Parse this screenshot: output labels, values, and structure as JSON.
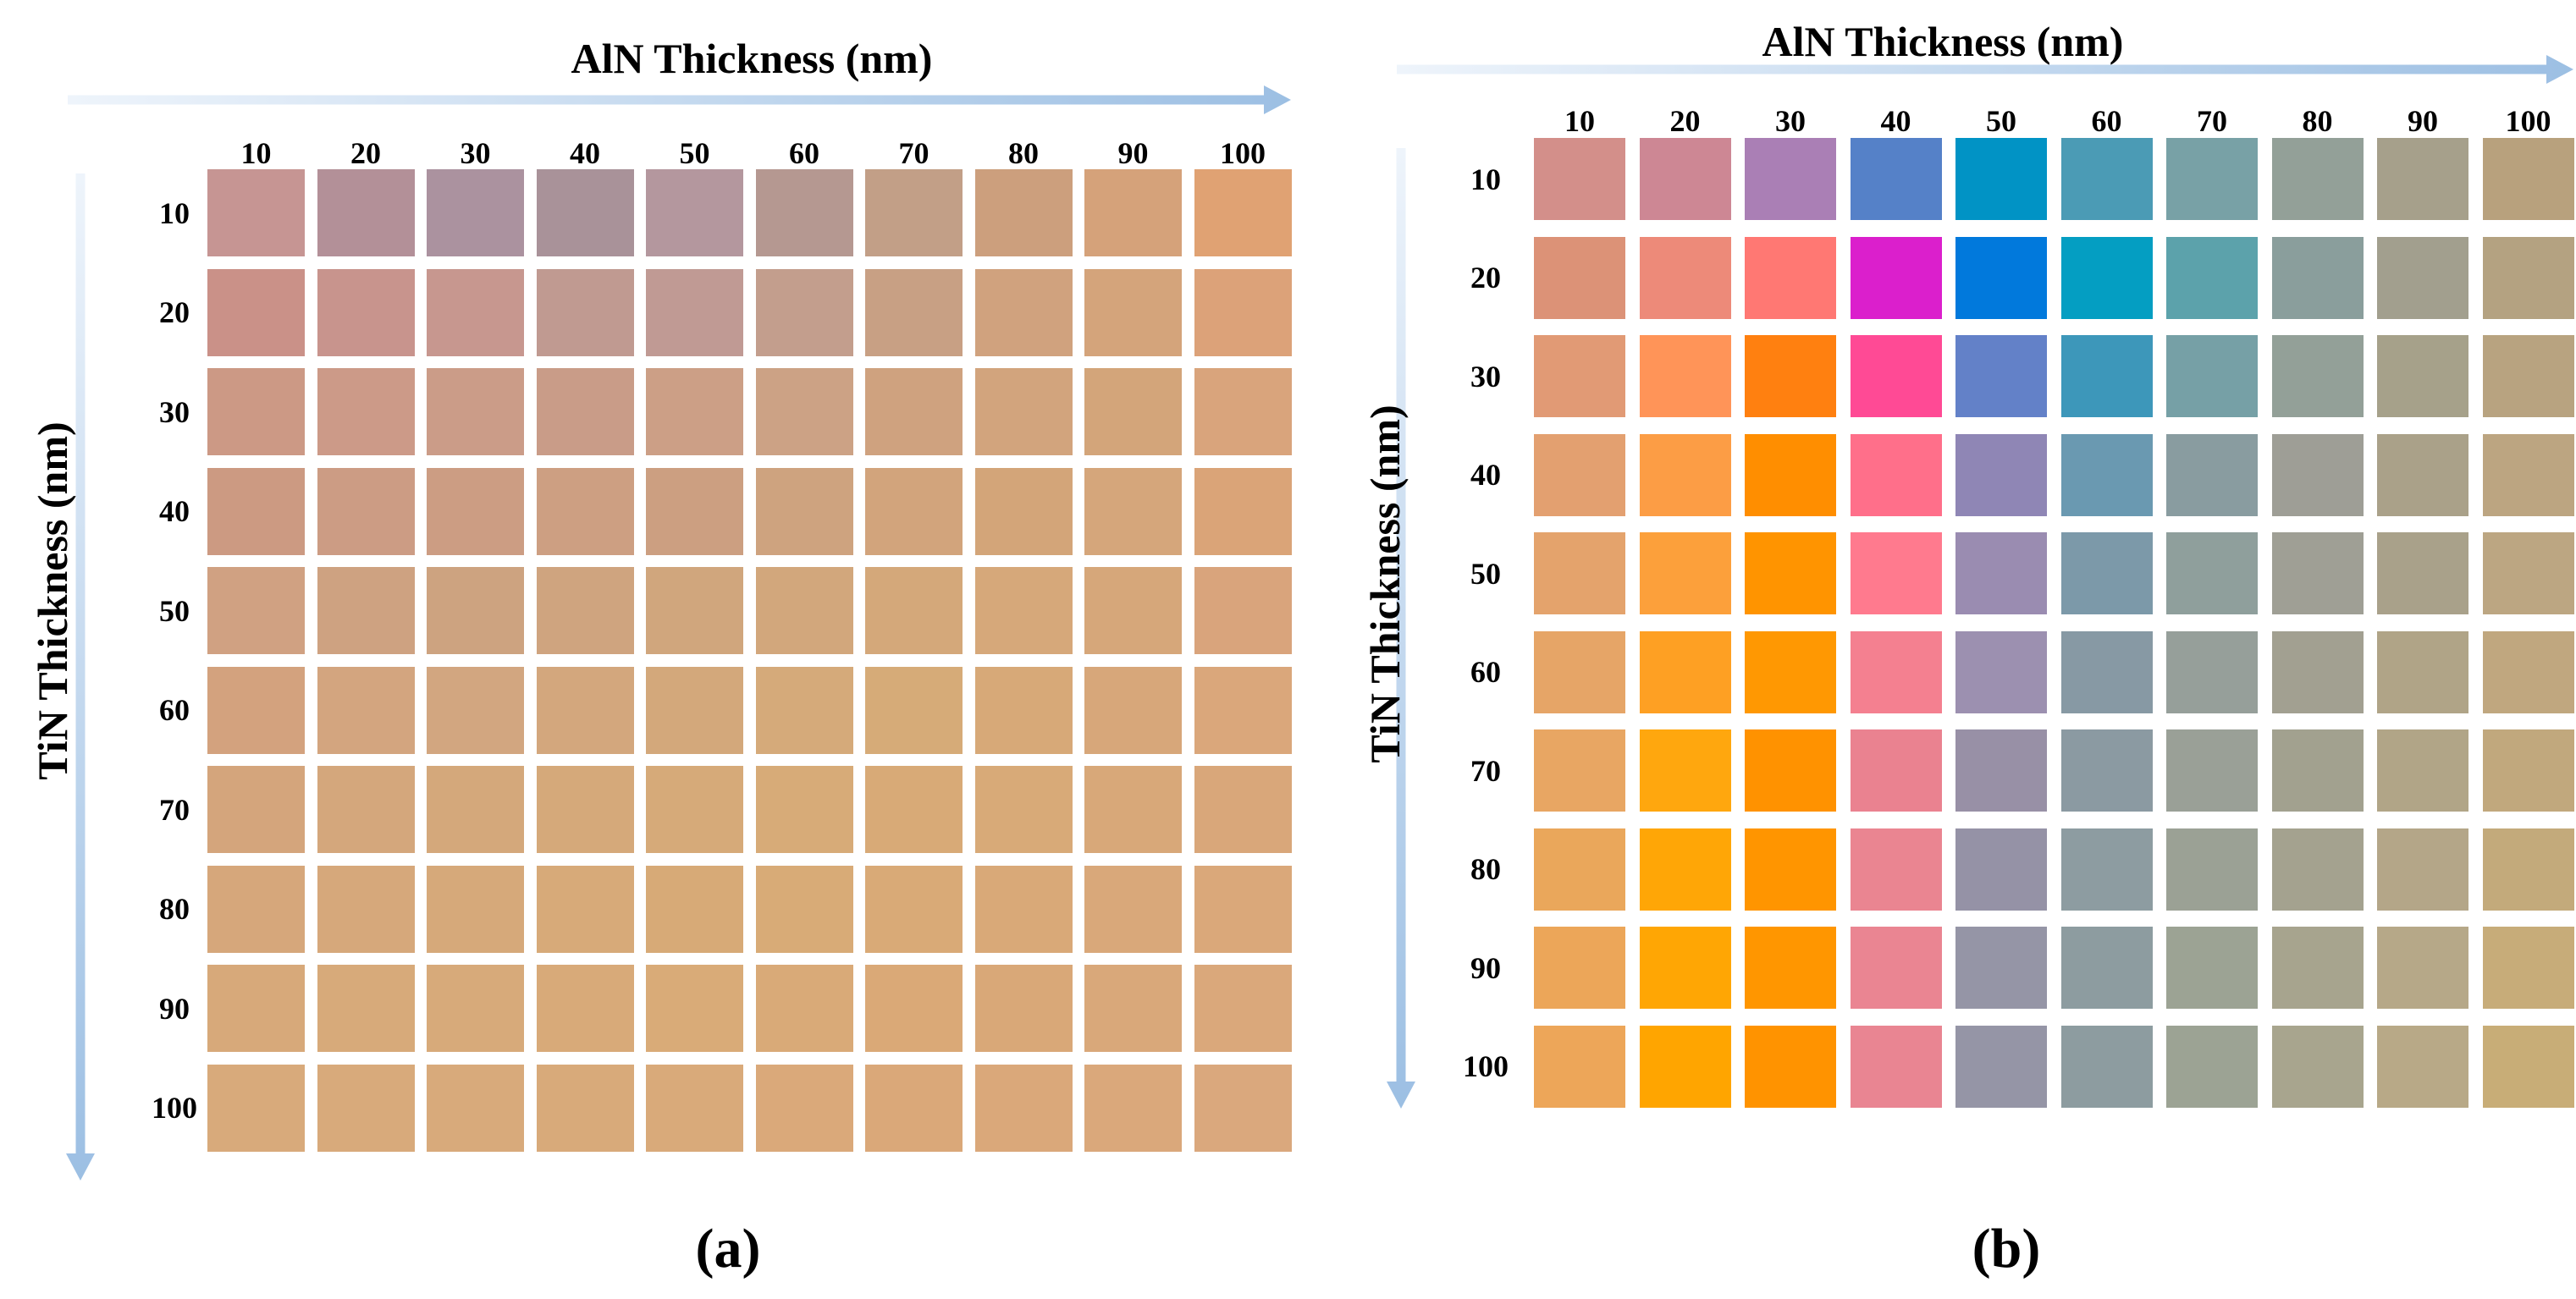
{
  "chart_data": [
    {
      "type": "heatmap",
      "caption": "(a)",
      "xlabel": "AlN Thickness (nm)",
      "ylabel": "TiN Thickness (nm)",
      "x_ticks": [
        "10",
        "20",
        "30",
        "40",
        "50",
        "60",
        "70",
        "80",
        "90",
        "100"
      ],
      "y_ticks": [
        "10",
        "20",
        "30",
        "40",
        "50",
        "60",
        "70",
        "80",
        "90",
        "100"
      ],
      "colors": [
        [
          "#c69593",
          "#b39098",
          "#ab929f",
          "#a99299",
          "#b4979e",
          "#b59891",
          "#c29f87",
          "#cc9f7d",
          "#d5a27a",
          "#e0a273"
        ],
        [
          "#ca9188",
          "#c8948d",
          "#c7978f",
          "#c09a91",
          "#c09a94",
          "#c39e8d",
          "#c8a084",
          "#d0a27e",
          "#d4a47b",
          "#dca279"
        ],
        [
          "#cc9985",
          "#cc9a88",
          "#cb9c88",
          "#c99c88",
          "#cc9f86",
          "#cca285",
          "#cfa27f",
          "#d2a47d",
          "#d3a57a",
          "#d9a47c"
        ],
        [
          "#cc9a82",
          "#cc9c84",
          "#cc9d83",
          "#cd9f82",
          "#cc9f81",
          "#cea37f",
          "#d2a47c",
          "#d3a579",
          "#d5a67b",
          "#daa478"
        ],
        [
          "#d0a182",
          "#cea281",
          "#cda380",
          "#cfa47f",
          "#d0a67d",
          "#d2a77c",
          "#d4a87a",
          "#d6a87a",
          "#d6a77a",
          "#d9a47c"
        ],
        [
          "#d3a27e",
          "#d3a57f",
          "#d2a680",
          "#d3a77d",
          "#d3a87b",
          "#d5aa7a",
          "#d6ab78",
          "#d7a978",
          "#d7a77a",
          "#daa77b"
        ],
        [
          "#d4a57c",
          "#d4a77c",
          "#d4a87b",
          "#d5a97a",
          "#d6aa79",
          "#d7ab78",
          "#d8aa77",
          "#d8aa78",
          "#d8a879",
          "#d9a77a"
        ],
        [
          "#d6a77b",
          "#d6a87b",
          "#d6a97a",
          "#d7aa79",
          "#d7aa77",
          "#d8ab77",
          "#d9aa77",
          "#d9a978",
          "#d9a87a",
          "#daa87a"
        ],
        [
          "#d7a97a",
          "#d7aa7a",
          "#d7aa7a",
          "#d8aa79",
          "#d9ab78",
          "#d9aa78",
          "#daa977",
          "#d9a878",
          "#d9a87a",
          "#daa87b"
        ],
        [
          "#d8aa7b",
          "#d8aa7b",
          "#d8aa7b",
          "#d8aa7a",
          "#d9aa7a",
          "#daa97a",
          "#daa879",
          "#daa87a",
          "#daa87b",
          "#daa87d"
        ]
      ]
    },
    {
      "type": "heatmap",
      "caption": "(b)",
      "xlabel": "AlN Thickness (nm)",
      "ylabel": "TiN Thickness (nm)",
      "x_ticks": [
        "10",
        "20",
        "30",
        "40",
        "50",
        "60",
        "70",
        "80",
        "90",
        "100"
      ],
      "y_ticks": [
        "10",
        "20",
        "30",
        "40",
        "50",
        "60",
        "70",
        "80",
        "90",
        "100"
      ],
      "colors": [
        [
          "#d38f8a",
          "#cd8794",
          "#aa7fb5",
          "#5581c8",
          "#0193c5",
          "#4b9bb5",
          "#78a1a6",
          "#93a098",
          "#a6a08b",
          "#b8a17d"
        ],
        [
          "#dc9277",
          "#ed8a79",
          "#ff7873",
          "#db1fcc",
          "#0179dc",
          "#049ec2",
          "#5ca2ab",
          "#8a9e9c",
          "#a29f8e",
          "#b4a281"
        ],
        [
          "#e19a75",
          "#ff9458",
          "#ff8010",
          "#ff4a95",
          "#6381c8",
          "#3d97ba",
          "#76a0a6",
          "#93a098",
          "#a6a18a",
          "#b8a380"
        ],
        [
          "#e3a070",
          "#fc9d45",
          "#ff8e00",
          "#ff6f8a",
          "#8f86b5",
          "#6a99b1",
          "#899ca0",
          "#9e9e96",
          "#aaa189",
          "#bca581"
        ],
        [
          "#e4a36c",
          "#fca03b",
          "#ff9400",
          "#ff7a8e",
          "#9a8cb1",
          "#7c99a9",
          "#8f9f9c",
          "#9f9f95",
          "#a9a18a",
          "#bca682"
        ],
        [
          "#e6a567",
          "#fea023",
          "#ff9802",
          "#f48090",
          "#9c90b0",
          "#8799a4",
          "#969f9a",
          "#a2a091",
          "#b0a487",
          "#c0a77f"
        ],
        [
          "#e8a663",
          "#ffa70e",
          "#ff9200",
          "#ea8290",
          "#9890a6",
          "#8b9aa2",
          "#9aa097",
          "#a2a18f",
          "#b1a587",
          "#c1a87d"
        ],
        [
          "#eaa75b",
          "#ffa606",
          "#ff9500",
          "#ea8591",
          "#9592a6",
          "#8d9ca1",
          "#9ba195",
          "#a4a28f",
          "#b4a688",
          "#c3aa7b"
        ],
        [
          "#eca659",
          "#ffa604",
          "#ff9600",
          "#ea8592",
          "#9595a6",
          "#8d9ca0",
          "#9ca394",
          "#a7a48e",
          "#b6a888",
          "#c7ac79"
        ],
        [
          "#eda659",
          "#ffa500",
          "#ff9300",
          "#e98592",
          "#9595a6",
          "#8d9ca0",
          "#9ca394",
          "#a8a58e",
          "#b8a987",
          "#c8ad77"
        ]
      ]
    }
  ]
}
